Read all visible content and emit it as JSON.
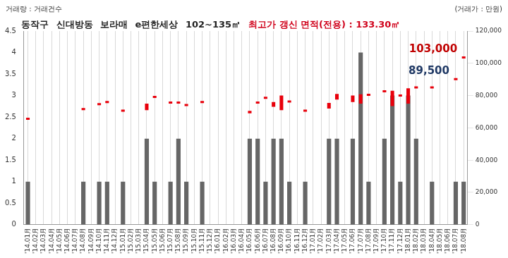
{
  "chart_data": {
    "type": "bar",
    "title": "동작구 신대방동 보라매 e편한세상 102~135㎡",
    "subtitle": "최고가 갱신 면적(전용) : 133.30㎡",
    "y_label": "거래량 : 거래건수",
    "y2_label": "(거래가 : 만원)",
    "categories": [
      "'14.01月",
      "'14.02月",
      "'14.03月",
      "'14.04月",
      "'14.05月",
      "'14.06月",
      "'14.07月",
      "'14.08月",
      "'14.09月",
      "'14.10月",
      "'14.11月",
      "'14.12月",
      "'15.01月",
      "'15.02月",
      "'15.03月",
      "'15.04月",
      "'15.05月",
      "'15.06月",
      "'15.07月",
      "'15.08月",
      "'15.09月",
      "'15.10月",
      "'15.11月",
      "'15.12月",
      "'16.01月",
      "'16.02月",
      "'16.03月",
      "'16.04月",
      "'16.05月",
      "'16.06月",
      "'16.07月",
      "'16.08月",
      "'16.09月",
      "'16.10月",
      "'16.11月",
      "'16.12月",
      "'17.01月",
      "'17.02月",
      "'17.03月",
      "'17.04月",
      "'17.05月",
      "'17.06月",
      "'17.07月",
      "'17.08月",
      "'17.09月",
      "'17.10月",
      "'17.11月",
      "'17.12月",
      "'18.01月",
      "'18.02月",
      "'18.03月",
      "'18.04月",
      "'18.05月",
      "'18.06月",
      "'18.07月",
      "'18.08月"
    ],
    "series": [
      {
        "type": "bar",
        "color": "#666666",
        "values": [
          1,
          0,
          0,
          0,
          0,
          0,
          0,
          1,
          0,
          1,
          1,
          0,
          1,
          0,
          0,
          2,
          1,
          0,
          1,
          2,
          1,
          0,
          1,
          0,
          0,
          0,
          0,
          0,
          2,
          2,
          1,
          2,
          2,
          1,
          0,
          1,
          0,
          0,
          2,
          2,
          0,
          2,
          4,
          1,
          0,
          2,
          3,
          1,
          3,
          2,
          0,
          1,
          0,
          0,
          1,
          1
        ]
      },
      {
        "type": "bar",
        "color": "#e8000b",
        "axis": "y2",
        "values": [
          [
            65000,
            65000
          ],
          null,
          null,
          null,
          null,
          null,
          null,
          [
            71000,
            71000
          ],
          null,
          [
            74000,
            74000
          ],
          [
            75300,
            75300
          ],
          null,
          [
            70000,
            70000
          ],
          null,
          null,
          [
            71000,
            75000
          ],
          [
            78500,
            78500
          ],
          null,
          [
            75000,
            75000
          ],
          [
            75000,
            75000
          ],
          [
            73500,
            73500
          ],
          null,
          [
            75300,
            75300
          ],
          null,
          null,
          null,
          null,
          null,
          [
            69000,
            70500
          ],
          [
            75000,
            75000
          ],
          [
            78000,
            78000
          ],
          [
            73000,
            76000
          ],
          [
            71000,
            80000
          ],
          [
            75700,
            75700
          ],
          null,
          [
            70000,
            70000
          ],
          null,
          null,
          [
            72000,
            75500
          ],
          [
            77500,
            81000
          ],
          null,
          [
            76000,
            80000
          ],
          [
            75000,
            80800
          ],
          [
            79800,
            79800
          ],
          null,
          [
            82000,
            83000
          ],
          [
            73500,
            83000
          ],
          [
            79400,
            79400
          ],
          [
            75000,
            84500
          ],
          [
            84400,
            84400
          ],
          null,
          [
            84400,
            84400
          ],
          null,
          null,
          [
            89500,
            89500
          ],
          [
            103000,
            103000
          ]
        ]
      }
    ],
    "ylim": [
      0,
      4.5
    ],
    "yticks": [
      0,
      0.5,
      1,
      1.5,
      2,
      2.5,
      3,
      3.5,
      4,
      4.5
    ],
    "y2lim": [
      0,
      120000
    ],
    "y2ticks": [
      0,
      {
        "value": 20000,
        "label": "20,000"
      },
      {
        "value": 40000,
        "label": "40,000"
      },
      {
        "value": 60000,
        "label": "60,000"
      },
      {
        "value": 80000,
        "label": "80,000"
      },
      {
        "value": 100000,
        "label": "100,000"
      },
      {
        "value": 120000,
        "label": "120,000"
      }
    ],
    "annotations": [
      {
        "x": "'18.08月",
        "value": 103000,
        "label": "103,000",
        "color": "#c00000"
      },
      {
        "x": "'18.07月",
        "value": 89500,
        "label": "89,500",
        "color": "#1f3864"
      }
    ],
    "grid": "x"
  }
}
